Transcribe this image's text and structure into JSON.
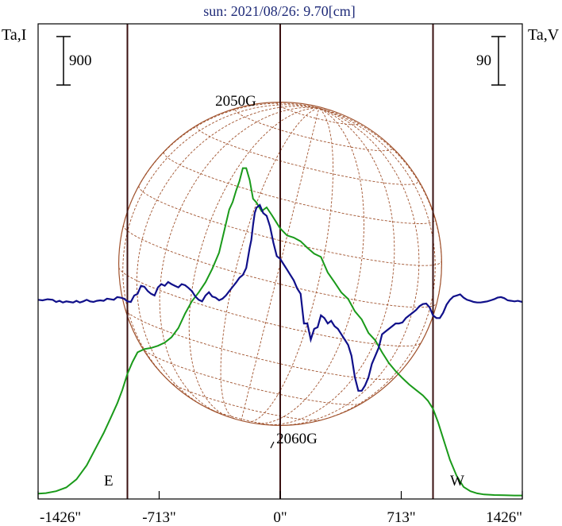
{
  "chart_data": {
    "type": "line",
    "title": "sun: 2021/08/26: 9.70[cm]",
    "y_left_label": "Ta,I",
    "y_right_label": "Ta,V",
    "x_ticks": [
      {
        "value": -1426,
        "label": "-1426\""
      },
      {
        "value": -713,
        "label": "-713\""
      },
      {
        "value": 0,
        "label": "0\""
      },
      {
        "value": 713,
        "label": "713\""
      },
      {
        "value": 1426,
        "label": "1426\""
      }
    ],
    "xlim": [
      -1426,
      1426
    ],
    "left_scale_bar": {
      "label": "900",
      "value": 900
    },
    "right_scale_bar": {
      "label": "90",
      "value": 90
    },
    "limb_markers": [
      {
        "label": "E",
        "x": -900
      },
      {
        "label": "W",
        "x": 900
      }
    ],
    "annotations": [
      {
        "text": "2050G",
        "x": -190
      },
      {
        "text": "2060G",
        "x": 90
      }
    ],
    "colors": {
      "stokes_i": "#1a9a1a",
      "stokes_v": "#10108a",
      "disk": "#a0522d",
      "frame": "#000000",
      "title": "#1e2a78",
      "vertical_lines": "#3a1010"
    },
    "series": [
      {
        "key": "I",
        "x": [
          -1426,
          -1380,
          -1320,
          -1260,
          -1200,
          -1140,
          -1080,
          -1040,
          -1000,
          -960,
          -930,
          -900,
          -870,
          -840,
          -800,
          -760,
          -720,
          -680,
          -640,
          -600,
          -560,
          -520,
          -480,
          -440,
          -400,
          -360,
          -330,
          -300,
          -280,
          -260,
          -240,
          -220,
          -200,
          -180,
          -160,
          -140,
          -110,
          -80,
          -50,
          -20,
          0,
          40,
          80,
          120,
          160,
          200,
          240,
          280,
          320,
          360,
          400,
          440,
          480,
          520,
          560,
          600,
          640,
          680,
          720,
          760,
          800,
          840,
          870,
          900,
          930,
          960,
          1000,
          1040,
          1080,
          1120,
          1160,
          1200,
          1260,
          1320,
          1380,
          1426
        ],
        "y": [
          -1425,
          -1415,
          -1380,
          -1310,
          -1160,
          -900,
          -540,
          -300,
          -30,
          250,
          500,
          800,
          1020,
          1200,
          1260,
          1280,
          1320,
          1380,
          1480,
          1650,
          1920,
          2150,
          2310,
          2500,
          2750,
          3050,
          3450,
          3850,
          3990,
          4200,
          4380,
          4620,
          4620,
          4400,
          4050,
          3980,
          3820,
          3890,
          3750,
          3600,
          3500,
          3370,
          3330,
          3260,
          3140,
          3030,
          2970,
          2680,
          2500,
          2310,
          2190,
          1960,
          1810,
          1560,
          1420,
          1200,
          1000,
          850,
          720,
          600,
          500,
          400,
          300,
          150,
          -100,
          -400,
          -800,
          -1100,
          -1300,
          -1380,
          -1420,
          -1440,
          -1450,
          -1455,
          -1460,
          -1460
        ]
      },
      {
        "key": "V",
        "x": [
          -1426,
          -1400,
          -1370,
          -1340,
          -1320,
          -1300,
          -1280,
          -1260,
          -1240,
          -1220,
          -1200,
          -1180,
          -1160,
          -1140,
          -1120,
          -1100,
          -1080,
          -1060,
          -1040,
          -1020,
          -1000,
          -980,
          -960,
          -940,
          -920,
          -900,
          -880,
          -860,
          -840,
          -820,
          -800,
          -780,
          -760,
          -740,
          -720,
          -700,
          -680,
          -660,
          -640,
          -620,
          -600,
          -580,
          -560,
          -540,
          -520,
          -500,
          -480,
          -460,
          -440,
          -420,
          -400,
          -380,
          -360,
          -340,
          -320,
          -300,
          -280,
          -260,
          -240,
          -220,
          -200,
          -180,
          -170,
          -160,
          -150,
          -140,
          -120,
          -100,
          -80,
          -60,
          -40,
          -20,
          0,
          20,
          40,
          60,
          80,
          100,
          120,
          140,
          160,
          180,
          200,
          220,
          240,
          260,
          280,
          300,
          320,
          340,
          360,
          380,
          400,
          420,
          440,
          460,
          480,
          500,
          520,
          540,
          560,
          580,
          600,
          620,
          640,
          660,
          680,
          700,
          720,
          740,
          760,
          780,
          800,
          820,
          840,
          860,
          880,
          900,
          920,
          940,
          960,
          980,
          1000,
          1020,
          1040,
          1060,
          1080,
          1100,
          1120,
          1140,
          1160,
          1180,
          1200,
          1220,
          1240,
          1260,
          1280,
          1300,
          1320,
          1340,
          1360,
          1380,
          1400,
          1426
        ],
        "y": [
          4,
          3,
          5,
          4,
          0,
          2,
          -1,
          1,
          0,
          -1,
          2,
          -1,
          1,
          4,
          1,
          0,
          2,
          3,
          2,
          6,
          5,
          4,
          9,
          8,
          6,
          1,
          0,
          12,
          15,
          30,
          28,
          20,
          15,
          12,
          27,
          33,
          30,
          37,
          33,
          30,
          27,
          33,
          31,
          26,
          20,
          10,
          4,
          1,
          12,
          18,
          10,
          8,
          3,
          6,
          12,
          20,
          28,
          36,
          45,
          50,
          63,
          100,
          115,
          143,
          165,
          175,
          180,
          165,
          160,
          140,
          110,
          85,
          80,
          70,
          60,
          50,
          40,
          25,
          15,
          -40,
          -40,
          -70,
          -50,
          -47,
          -25,
          -30,
          -40,
          -35,
          -45,
          -50,
          -60,
          -70,
          -80,
          -100,
          -140,
          -165,
          -165,
          -155,
          -140,
          -115,
          -100,
          -85,
          -60,
          -55,
          -50,
          -45,
          -40,
          -40,
          -38,
          -30,
          -25,
          -20,
          -15,
          -8,
          -4,
          -3,
          -10,
          -25,
          -30,
          -30,
          -20,
          -5,
          4,
          10,
          12,
          14,
          8,
          4,
          2,
          0,
          -1,
          -1,
          0,
          1,
          3,
          5,
          8,
          9,
          7,
          3,
          2,
          1,
          2,
          0
        ]
      }
    ],
    "disk_radius": 951
  }
}
